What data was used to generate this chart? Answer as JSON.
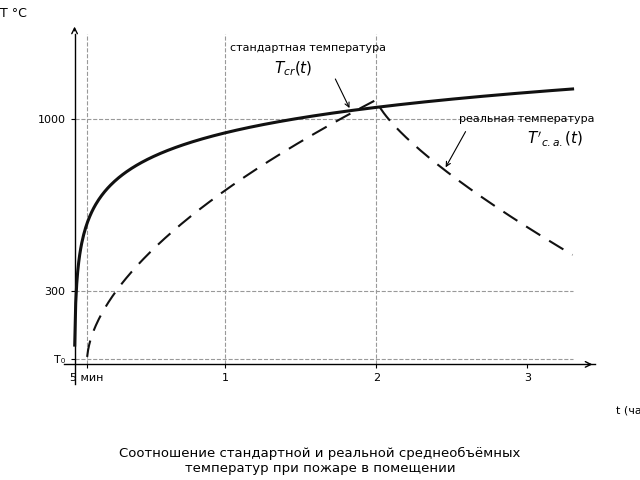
{
  "title": "Соотношение стандартной и реальной среднеобъёмных\nтемператур при пожаре в помещении",
  "xlabel": "t (час)",
  "ylabel": "T °C",
  "T0_value": 20,
  "y_tick_vals": [
    20,
    300,
    1000
  ],
  "y_tick_labels": [
    "T₀",
    "300",
    "1000"
  ],
  "x_tick_vals": [
    0.0833,
    1.0,
    2.0,
    3.0
  ],
  "x_tick_labels": [
    "5 мин",
    "1",
    "2",
    "3"
  ],
  "x_max": 3.3,
  "y_max": 1350,
  "y_plot_min": -80,
  "standard_label": "стандартная температура",
  "standard_formula": "$T_{cr}(t)$",
  "real_label": "реальная температура",
  "real_formula": "$T'_{c.a.}(t)$",
  "bg_color": "#ffffff",
  "line_color": "#111111",
  "dash_ref_color": "#999999"
}
